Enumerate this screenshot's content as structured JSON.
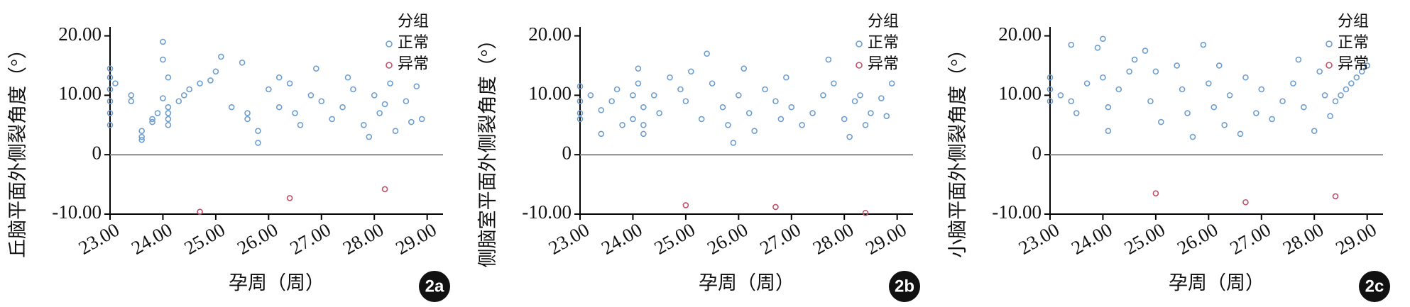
{
  "chart_data": [
    {
      "type": "scatter",
      "ylabel": "丘脑平面外侧裂角度（°）",
      "xlabel": "孕周（周）",
      "panel": "2a",
      "legend_title": "分组",
      "xlim": [
        23,
        29.3
      ],
      "ylim": [
        -10,
        21.5
      ],
      "xticks": [
        {
          "value": 23,
          "label": "23.00"
        },
        {
          "value": 24,
          "label": "24.00"
        },
        {
          "value": 25,
          "label": "25.00"
        },
        {
          "value": 26,
          "label": "26.00"
        },
        {
          "value": 27,
          "label": "27.00"
        },
        {
          "value": 28,
          "label": "28.00"
        },
        {
          "value": 29,
          "label": "29.00"
        }
      ],
      "yticks": [
        {
          "value": -10,
          "label": "-10.00"
        },
        0,
        {
          "value": 10,
          "label": "10.00"
        },
        {
          "value": 20,
          "label": "20.00"
        }
      ],
      "zero_line": true,
      "series": [
        {
          "name": "正常",
          "color": "#6f9fd0",
          "x": [
            23.0,
            23.0,
            23.0,
            23.0,
            23.0,
            23.0,
            23.1,
            23.4,
            23.4,
            23.6,
            23.6,
            23.6,
            23.8,
            23.8,
            23.9,
            24.0,
            24.0,
            24.0,
            24.1,
            24.1,
            24.1,
            24.1,
            24.1,
            24.3,
            24.4,
            24.5,
            24.7,
            24.9,
            25.0,
            25.1,
            25.3,
            25.5,
            25.6,
            25.6,
            25.8,
            25.8,
            26.0,
            26.2,
            26.2,
            26.4,
            26.5,
            26.6,
            26.8,
            26.9,
            27.0,
            27.2,
            27.4,
            27.5,
            27.6,
            27.8,
            27.9,
            28.0,
            28.1,
            28.2,
            28.3,
            28.4,
            28.6,
            28.7,
            28.8,
            28.9
          ],
          "values": [
            11,
            13,
            9,
            14.5,
            7,
            5,
            12,
            10,
            9,
            3,
            4,
            2.5,
            5.5,
            6,
            7,
            9.5,
            19,
            16,
            13,
            8,
            7,
            6,
            5,
            9,
            10,
            11,
            12,
            12.5,
            14,
            16.5,
            8,
            15.5,
            7,
            6,
            4,
            2,
            11,
            13,
            8,
            12,
            7,
            5,
            10,
            14.5,
            9,
            6,
            8,
            13,
            11,
            5,
            3,
            10,
            7,
            8.5,
            12,
            4,
            9,
            5.5,
            11.5,
            6
          ]
        },
        {
          "name": "异常",
          "color": "#c0506a",
          "x": [
            24.7,
            26.4,
            28.2
          ],
          "values": [
            -9.6,
            -7.3,
            -5.8
          ]
        }
      ]
    },
    {
      "type": "scatter",
      "ylabel": "侧脑室平面外侧裂角度（°）",
      "xlabel": "孕周（周）",
      "panel": "2b",
      "legend_title": "分组",
      "xlim": [
        23,
        29.3
      ],
      "ylim": [
        -10,
        21.5
      ],
      "xticks": [
        {
          "value": 23,
          "label": "23.00"
        },
        {
          "value": 24,
          "label": "24.00"
        },
        {
          "value": 25,
          "label": "25.00"
        },
        {
          "value": 26,
          "label": "26.00"
        },
        {
          "value": 27,
          "label": "27.00"
        },
        {
          "value": 28,
          "label": "28.00"
        },
        {
          "value": 29,
          "label": "29.00"
        }
      ],
      "yticks": [
        {
          "value": -10,
          "label": "-10.00"
        },
        0,
        {
          "value": 10,
          "label": "10.00"
        },
        {
          "value": 20,
          "label": "20.00"
        }
      ],
      "zero_line": true,
      "series": [
        {
          "name": "正常",
          "color": "#6f9fd0",
          "x": [
            23.0,
            23.0,
            23.0,
            23.0,
            23.2,
            23.4,
            23.4,
            23.6,
            23.7,
            23.8,
            24.0,
            24.0,
            24.1,
            24.1,
            24.2,
            24.2,
            24.2,
            24.4,
            24.5,
            24.7,
            24.9,
            25.0,
            25.1,
            25.3,
            25.4,
            25.5,
            25.7,
            25.8,
            25.9,
            26.0,
            26.1,
            26.2,
            26.3,
            26.5,
            26.7,
            26.8,
            26.9,
            27.0,
            27.2,
            27.4,
            27.6,
            27.7,
            27.8,
            28.0,
            28.1,
            28.2,
            28.3,
            28.4,
            28.5,
            28.7,
            28.8,
            28.9
          ],
          "values": [
            11.5,
            9,
            7,
            6,
            10,
            7.5,
            3.5,
            9,
            11,
            5,
            10,
            6,
            14.5,
            12,
            8,
            5,
            3.5,
            10,
            7,
            13,
            11,
            9,
            14,
            6,
            17,
            12,
            8,
            5,
            2,
            10,
            14.5,
            7,
            4,
            11,
            9,
            6,
            13,
            8,
            5,
            7,
            10,
            16,
            12,
            6,
            3,
            9,
            10,
            5,
            7,
            9.5,
            6.5,
            12
          ]
        },
        {
          "name": "异常",
          "color": "#c0506a",
          "x": [
            25.0,
            26.7,
            28.4
          ],
          "values": [
            -8.5,
            -8.8,
            -9.8
          ]
        }
      ]
    },
    {
      "type": "scatter",
      "ylabel": "小脑平面外侧裂角度（°）",
      "xlabel": "孕周（周）",
      "panel": "2c",
      "legend_title": "分组",
      "xlim": [
        23,
        29.3
      ],
      "ylim": [
        -10,
        21.5
      ],
      "xticks": [
        {
          "value": 23,
          "label": "23.00"
        },
        {
          "value": 24,
          "label": "24.00"
        },
        {
          "value": 25,
          "label": "25.00"
        },
        {
          "value": 26,
          "label": "26.00"
        },
        {
          "value": 27,
          "label": "27.00"
        },
        {
          "value": 28,
          "label": "28.00"
        },
        {
          "value": 29,
          "label": "29.00"
        }
      ],
      "yticks": [
        {
          "value": -10,
          "label": "-10.00"
        },
        0,
        {
          "value": 10,
          "label": "10.00"
        },
        {
          "value": 20,
          "label": "20.00"
        }
      ],
      "zero_line": true,
      "series": [
        {
          "name": "正常",
          "color": "#6f9fd0",
          "x": [
            23.0,
            23.0,
            23.0,
            23.2,
            23.4,
            23.4,
            23.5,
            23.7,
            23.9,
            24.0,
            24.0,
            24.1,
            24.1,
            24.3,
            24.5,
            24.6,
            24.8,
            24.9,
            25.0,
            25.1,
            25.4,
            25.5,
            25.6,
            25.7,
            25.9,
            26.0,
            26.1,
            26.2,
            26.3,
            26.4,
            26.6,
            26.7,
            26.9,
            27.0,
            27.2,
            27.4,
            27.6,
            27.7,
            27.8,
            28.0,
            28.1,
            28.2,
            28.3,
            28.4,
            28.5,
            28.6,
            28.7,
            28.8,
            28.9,
            29.0
          ],
          "values": [
            13,
            11,
            9,
            10,
            18.5,
            9,
            7,
            12,
            18,
            19.5,
            13,
            8,
            4,
            11,
            14,
            16,
            17.5,
            9,
            14,
            5.5,
            15,
            11,
            7,
            3,
            18.5,
            12,
            8,
            15,
            5,
            10,
            3.5,
            13,
            7,
            11,
            6,
            9,
            12,
            16,
            8,
            4,
            14,
            10,
            6.5,
            9,
            10,
            11,
            12,
            13,
            14,
            15
          ]
        },
        {
          "name": "异常",
          "color": "#c0506a",
          "x": [
            25.0,
            26.7,
            28.4
          ],
          "values": [
            -6.5,
            -8,
            -7
          ]
        }
      ]
    }
  ]
}
